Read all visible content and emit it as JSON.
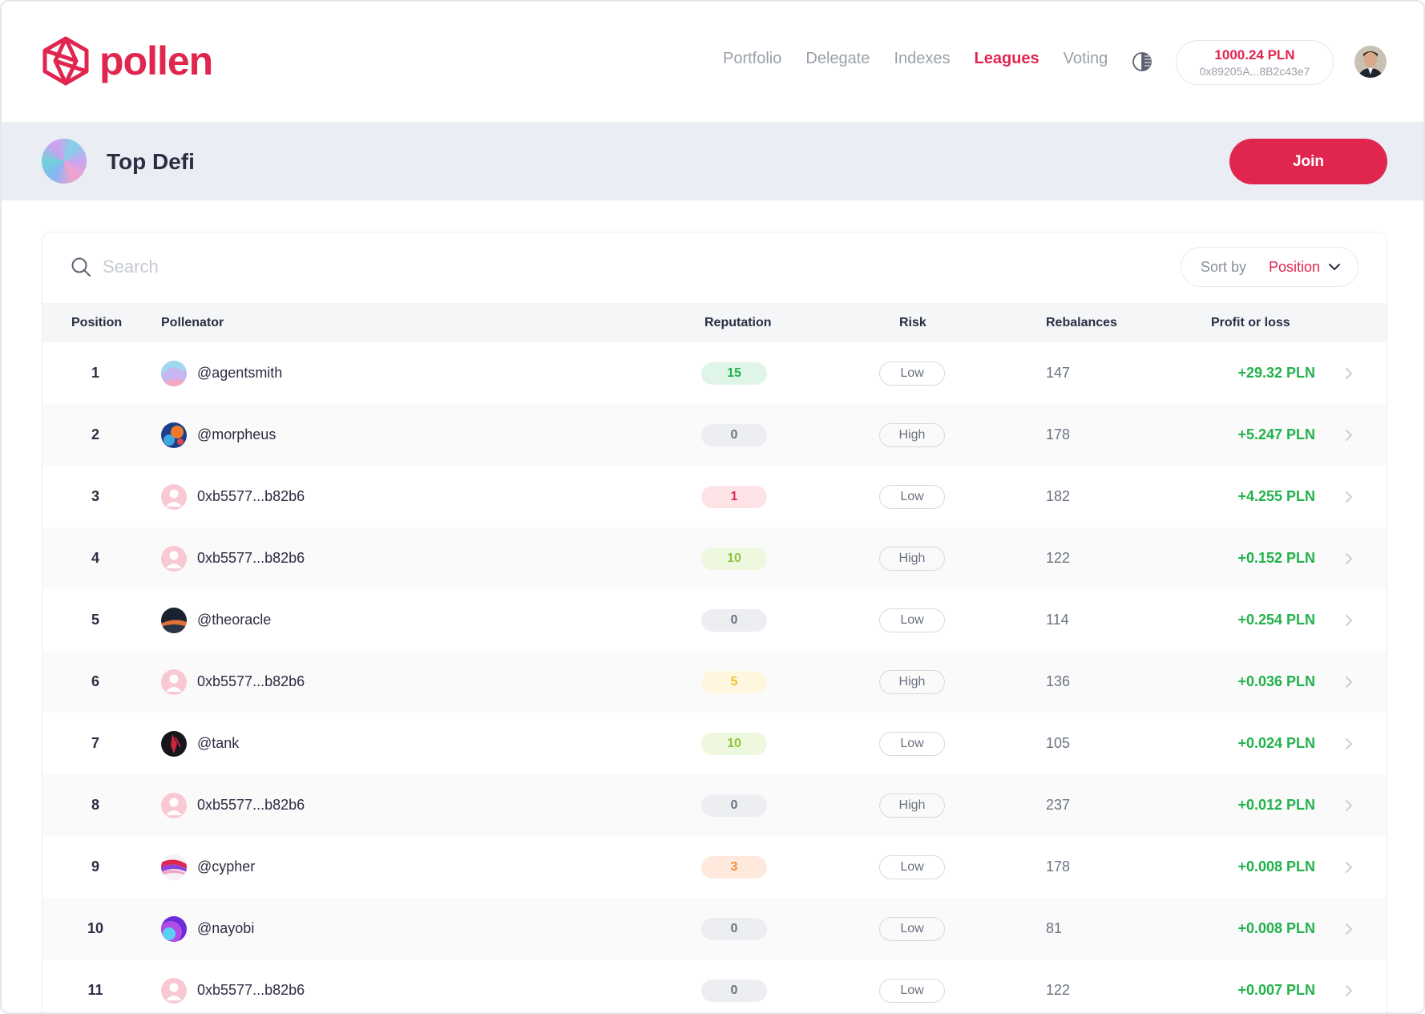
{
  "brand": {
    "name": "pollen"
  },
  "nav": {
    "items": [
      {
        "label": "Portfolio",
        "active": false
      },
      {
        "label": "Delegate",
        "active": false
      },
      {
        "label": "Indexes",
        "active": false
      },
      {
        "label": "Leagues",
        "active": true
      },
      {
        "label": "Voting",
        "active": false
      }
    ]
  },
  "wallet": {
    "balance": "1000.24 PLN",
    "address": "0x89205A...8B2c43e7"
  },
  "league": {
    "title": "Top Defi",
    "join_label": "Join"
  },
  "search": {
    "placeholder": "Search",
    "value": ""
  },
  "sort": {
    "label": "Sort by",
    "value": "Position"
  },
  "table": {
    "headers": {
      "position": "Position",
      "pollenator": "Pollenator",
      "reputation": "Reputation",
      "risk": "Risk",
      "rebalances": "Rebalances",
      "profit": "Profit or loss"
    },
    "rows": [
      {
        "position": "1",
        "pollenator": "@agentsmith",
        "avatar": "pastel-swirl",
        "reputation": "15",
        "rep_level": "green",
        "risk": "Low",
        "rebalances": "147",
        "profit": "+29.32 PLN"
      },
      {
        "position": "2",
        "pollenator": "@morpheus",
        "avatar": "blue-orange-splash",
        "reputation": "0",
        "rep_level": "gray",
        "risk": "High",
        "rebalances": "178",
        "profit": "+5.247 PLN"
      },
      {
        "position": "3",
        "pollenator": "0xb5577...b82b6",
        "avatar": "default-user",
        "reputation": "1",
        "rep_level": "red",
        "risk": "Low",
        "rebalances": "182",
        "profit": "+4.255 PLN"
      },
      {
        "position": "4",
        "pollenator": "0xb5577...b82b6",
        "avatar": "default-user",
        "reputation": "10",
        "rep_level": "lime",
        "risk": "High",
        "rebalances": "122",
        "profit": "+0.152 PLN"
      },
      {
        "position": "5",
        "pollenator": "@theoracle",
        "avatar": "dark-sunset",
        "reputation": "0",
        "rep_level": "gray",
        "risk": "Low",
        "rebalances": "114",
        "profit": "+0.254 PLN"
      },
      {
        "position": "6",
        "pollenator": "0xb5577...b82b6",
        "avatar": "default-user",
        "reputation": "5",
        "rep_level": "yellow",
        "risk": "High",
        "rebalances": "136",
        "profit": "+0.036 PLN"
      },
      {
        "position": "7",
        "pollenator": "@tank",
        "avatar": "dark-red-figure",
        "reputation": "10",
        "rep_level": "lime",
        "risk": "Low",
        "rebalances": "105",
        "profit": "+0.024 PLN"
      },
      {
        "position": "8",
        "pollenator": "0xb5577...b82b6",
        "avatar": "default-user",
        "reputation": "0",
        "rep_level": "gray",
        "risk": "High",
        "rebalances": "237",
        "profit": "+0.012 PLN"
      },
      {
        "position": "9",
        "pollenator": "@cypher",
        "avatar": "magenta-wave",
        "reputation": "3",
        "rep_level": "orange",
        "risk": "Low",
        "rebalances": "178",
        "profit": "+0.008 PLN"
      },
      {
        "position": "10",
        "pollenator": "@nayobi",
        "avatar": "purple-planet",
        "reputation": "0",
        "rep_level": "gray",
        "risk": "Low",
        "rebalances": "81",
        "profit": "+0.008 PLN"
      },
      {
        "position": "11",
        "pollenator": "0xb5577...b82b6",
        "avatar": "default-user",
        "reputation": "0",
        "rep_level": "gray",
        "risk": "Low",
        "rebalances": "122",
        "profit": "+0.007 PLN"
      }
    ]
  },
  "colors": {
    "brand": "#e0264f",
    "profit": "#22b24c",
    "banner": "#eaedf3",
    "rep_green_bg": "#dff5e7",
    "rep_green_fg": "#22b24c",
    "rep_gray_bg": "#eceef2",
    "rep_gray_fg": "#6b7280",
    "rep_red_bg": "#fde3e6",
    "rep_red_fg": "#e0264f",
    "rep_lime_bg": "#eef8df",
    "rep_lime_fg": "#8cc63f",
    "rep_yellow_bg": "#fff6df",
    "rep_yellow_fg": "#f2c230",
    "rep_orange_bg": "#ffe9dc",
    "rep_orange_fg": "#f28c3c"
  }
}
